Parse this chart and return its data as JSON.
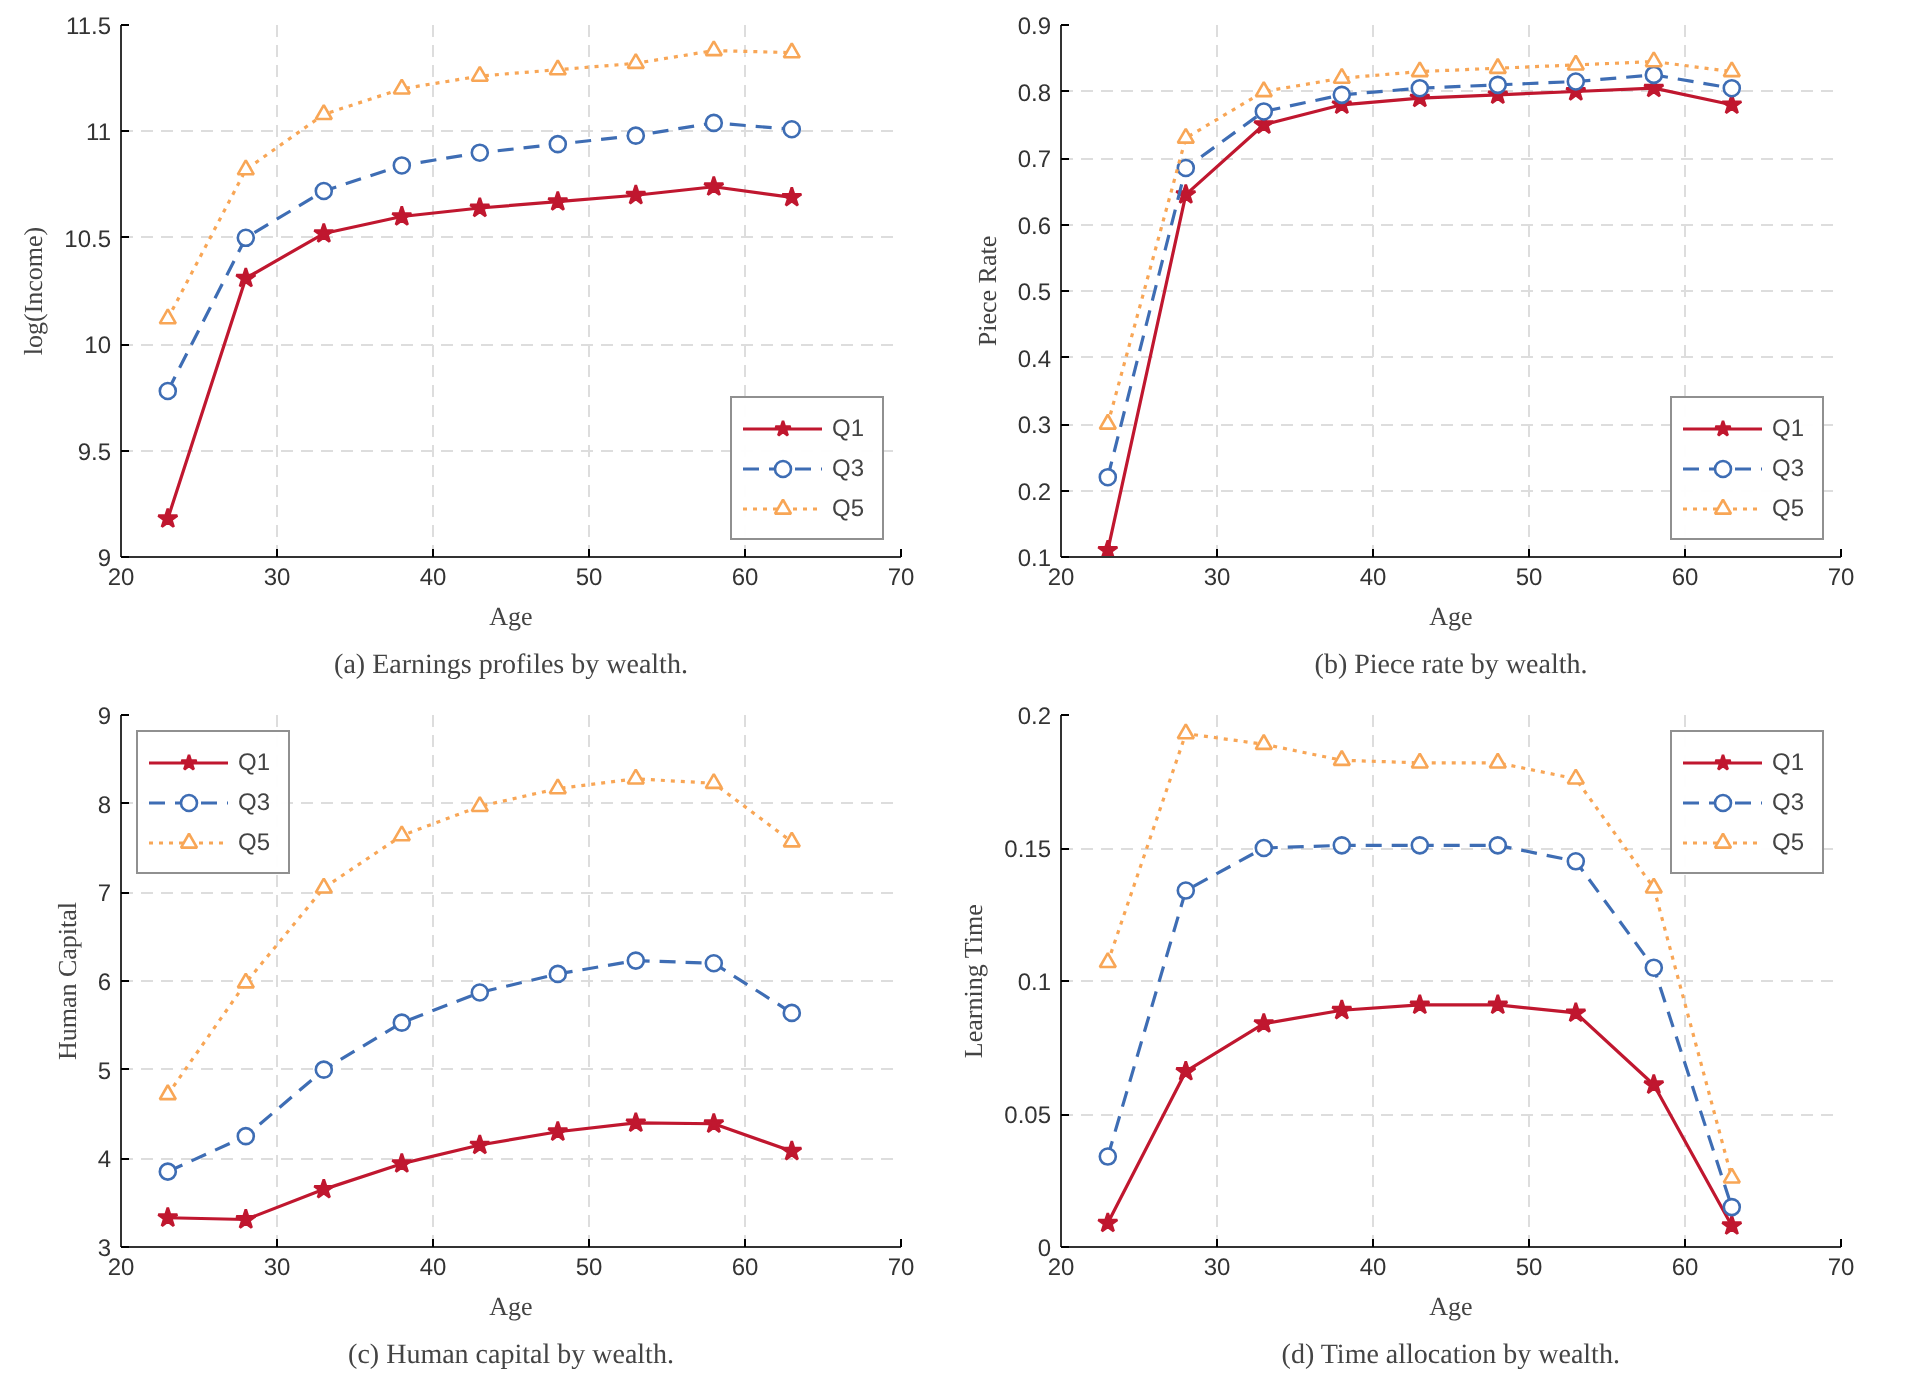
{
  "chart_data": [
    {
      "type": "line",
      "xlabel": "Age",
      "ylabel": "log(Income)",
      "annotations": [
        "(a) Earnings profiles by wealth."
      ],
      "x": [
        23,
        28,
        33,
        38,
        43,
        48,
        53,
        58,
        63
      ],
      "xlim": [
        20,
        70
      ],
      "xticks": [
        20,
        30,
        40,
        50,
        60,
        70
      ],
      "ylim": [
        9,
        11.5
      ],
      "yticks": [
        9,
        9.5,
        10,
        10.5,
        11,
        11.5
      ],
      "grid": true,
      "legend": "bottom right",
      "series": [
        {
          "name": "Q1",
          "color": "#c0172f",
          "marker": "star",
          "line_style": "solid",
          "values": [
            9.18,
            10.31,
            10.52,
            10.6,
            10.64,
            10.67,
            10.7,
            10.74,
            10.69
          ]
        },
        {
          "name": "Q3",
          "color": "#3e6db4",
          "marker": "circle",
          "line_style": "dashed",
          "values": [
            9.78,
            10.5,
            10.72,
            10.84,
            10.9,
            10.94,
            10.98,
            11.04,
            11.01
          ]
        },
        {
          "name": "Q5",
          "color": "#f8a656",
          "marker": "triangle",
          "line_style": "dotted",
          "values": [
            10.12,
            10.82,
            11.08,
            11.2,
            11.26,
            11.29,
            11.32,
            11.38,
            11.37
          ]
        }
      ]
    },
    {
      "type": "line",
      "xlabel": "Age",
      "ylabel": "Piece Rate",
      "annotations": [
        "(b) Piece rate by wealth."
      ],
      "x": [
        23,
        28,
        33,
        38,
        43,
        48,
        53,
        58,
        63
      ],
      "xlim": [
        20,
        70
      ],
      "xticks": [
        20,
        30,
        40,
        50,
        60,
        70
      ],
      "ylim": [
        0.1,
        0.9
      ],
      "yticks": [
        0.1,
        0.2,
        0.3,
        0.4,
        0.5,
        0.6,
        0.7,
        0.8,
        0.9
      ],
      "grid": true,
      "legend": "bottom right",
      "series": [
        {
          "name": "Q1",
          "color": "#c0172f",
          "marker": "star",
          "line_style": "solid",
          "values": [
            0.11,
            0.645,
            0.75,
            0.78,
            0.79,
            0.795,
            0.8,
            0.805,
            0.78
          ]
        },
        {
          "name": "Q3",
          "color": "#3e6db4",
          "marker": "circle",
          "line_style": "dashed",
          "values": [
            0.22,
            0.685,
            0.77,
            0.795,
            0.805,
            0.81,
            0.815,
            0.825,
            0.805
          ]
        },
        {
          "name": "Q5",
          "color": "#f8a656",
          "marker": "triangle",
          "line_style": "dotted",
          "values": [
            0.3,
            0.73,
            0.8,
            0.82,
            0.83,
            0.835,
            0.84,
            0.845,
            0.83
          ]
        }
      ]
    },
    {
      "type": "line",
      "xlabel": "Age",
      "ylabel": "Human Capital",
      "annotations": [
        "(c) Human capital by wealth."
      ],
      "x": [
        23,
        28,
        33,
        38,
        43,
        48,
        53,
        58,
        63
      ],
      "xlim": [
        20,
        70
      ],
      "xticks": [
        20,
        30,
        40,
        50,
        60,
        70
      ],
      "ylim": [
        3,
        9
      ],
      "yticks": [
        3,
        4,
        5,
        6,
        7,
        8,
        9
      ],
      "grid": true,
      "legend": "top left",
      "series": [
        {
          "name": "Q1",
          "color": "#c0172f",
          "marker": "star",
          "line_style": "solid",
          "values": [
            3.33,
            3.31,
            3.65,
            3.94,
            4.15,
            4.3,
            4.4,
            4.39,
            4.08
          ]
        },
        {
          "name": "Q3",
          "color": "#3e6db4",
          "marker": "circle",
          "line_style": "dashed",
          "values": [
            3.85,
            4.25,
            5.0,
            5.53,
            5.87,
            6.08,
            6.23,
            6.2,
            5.64
          ]
        },
        {
          "name": "Q5",
          "color": "#f8a656",
          "marker": "triangle",
          "line_style": "dotted",
          "values": [
            4.72,
            5.98,
            7.05,
            7.64,
            7.97,
            8.17,
            8.28,
            8.23,
            7.57
          ]
        }
      ]
    },
    {
      "type": "line",
      "xlabel": "Age",
      "ylabel": "Learning Time",
      "annotations": [
        "(d) Time allocation by wealth."
      ],
      "x": [
        23,
        28,
        33,
        38,
        43,
        48,
        53,
        58,
        63
      ],
      "xlim": [
        20,
        70
      ],
      "xticks": [
        20,
        30,
        40,
        50,
        60,
        70
      ],
      "ylim": [
        0,
        0.2
      ],
      "yticks": [
        0,
        0.05,
        0.1,
        0.15,
        0.2
      ],
      "grid": true,
      "legend": "top right",
      "series": [
        {
          "name": "Q1",
          "color": "#c0172f",
          "marker": "star",
          "line_style": "solid",
          "values": [
            0.009,
            0.066,
            0.084,
            0.089,
            0.091,
            0.091,
            0.088,
            0.061,
            0.008
          ]
        },
        {
          "name": "Q3",
          "color": "#3e6db4",
          "marker": "circle",
          "line_style": "dashed",
          "values": [
            0.034,
            0.134,
            0.15,
            0.151,
            0.151,
            0.151,
            0.145,
            0.105,
            0.015
          ]
        },
        {
          "name": "Q5",
          "color": "#f8a656",
          "marker": "triangle",
          "line_style": "dotted",
          "values": [
            0.107,
            0.193,
            0.189,
            0.183,
            0.182,
            0.182,
            0.176,
            0.135,
            0.026
          ]
        }
      ]
    }
  ]
}
